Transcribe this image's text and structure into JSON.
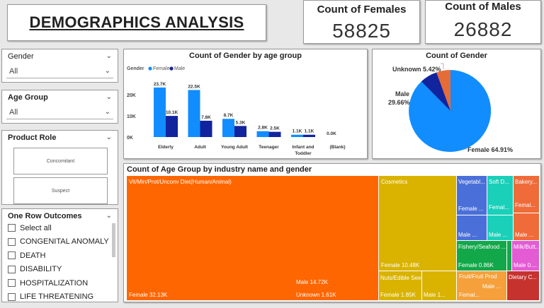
{
  "header": {
    "title": "DEMOGRAPHICS ANALYSIS"
  },
  "kpis": {
    "females": {
      "label": "Count of Females",
      "value": "58825"
    },
    "males": {
      "label": "Count of Males",
      "value": "26882"
    }
  },
  "slicers": {
    "gender": {
      "label": "Gender",
      "value": "All"
    },
    "age_group": {
      "label": "Age Group",
      "value": "All"
    },
    "product_role": {
      "label": "Product Role",
      "options": [
        "Concomitant",
        "Suspect"
      ]
    },
    "outcomes": {
      "label": "One Row Outcomes",
      "items": [
        "Select all",
        "CONGENITAL ANOMALY",
        "DEATH",
        "DISABILITY",
        "HOSPITALIZATION",
        "LIFE THREATENING"
      ]
    }
  },
  "colors": {
    "female": "#118DFF",
    "male": "#12239E",
    "unknown": "#E66C37"
  },
  "age_chart": {
    "title": "Count of Gender by age group",
    "legend_title": "Gender",
    "ytick_labels": [
      "20K",
      "10K",
      "0K"
    ]
  },
  "pie_chart": {
    "title": "Count of Gender",
    "labels": {
      "unknown": "Unknown 5.42%",
      "male_name": "Male",
      "male_pct": "29.66%",
      "female": "Female 64.91%"
    }
  },
  "treemap": {
    "title": "Count of Age Group by industry name and gender",
    "cells": [
      {
        "id": "vit-female",
        "label": "Vit/Min/Prot/Unconv Diet(Human/Animal)",
        "label2": "Female 32.13K",
        "color": "#FE6601"
      },
      {
        "id": "vit-male",
        "label": "Male 14.72K",
        "color": "#FE6601"
      },
      {
        "id": "vit-unknown",
        "label": "Unknown 1.61K",
        "color": "#FE6601"
      },
      {
        "id": "cos-female",
        "label": "Cosmetics",
        "label2": "Female 10.48K",
        "color": "#D9B300"
      },
      {
        "id": "nuts-female",
        "label": "Nuts/Edible Seed",
        "label2": "Female 1.85K",
        "color": "#D9B300"
      },
      {
        "id": "nuts-male",
        "label": "Male 1...",
        "color": "#D9B300"
      },
      {
        "id": "veg-female",
        "label": "Vegetabl...",
        "label2": "Female ...",
        "color": "#4A6FD8"
      },
      {
        "id": "veg-male",
        "label": "Male ...",
        "color": "#4A6FD8"
      },
      {
        "id": "soft-female",
        "label": "Soft D...",
        "label2": "Femal...",
        "color": "#1AD0B9"
      },
      {
        "id": "soft-male",
        "label": "Male ...",
        "color": "#1AD0B9"
      },
      {
        "id": "bak-female",
        "label": "Bakery...",
        "label2": "Femal...",
        "color": "#F06B3A"
      },
      {
        "id": "bak-male",
        "label": "Male ...",
        "color": "#F06B3A"
      },
      {
        "id": "fish",
        "label": "Fishery/Seafood ...",
        "label2": "Female 0.86K",
        "color": "#12A84A"
      },
      {
        "id": "fish-small",
        "label": "",
        "color": "#12A84A"
      },
      {
        "id": "milk",
        "label": "Milk/Butt...",
        "label2": "Male 0....",
        "color": "#E35CD4"
      },
      {
        "id": "fruit",
        "label": "Fruit/Fruit Prod",
        "label2": "Male ...",
        "label3": "Femal...",
        "color": "#F5A03A"
      },
      {
        "id": "dietary",
        "label": "Dietary C...",
        "color": "#C6322E"
      }
    ]
  },
  "chart_data": {
    "type": "bar",
    "title": "Count of Gender by age group",
    "categories": [
      "Elderly",
      "Adult",
      "Young Adult",
      "Teenager",
      "Infant and Toddler",
      "(Blank)"
    ],
    "series": [
      {
        "name": "Female",
        "values": [
          23.7,
          22.5,
          8.7,
          2.8,
          1.1,
          0.0
        ],
        "labels": [
          "23.7K",
          "22.5K",
          "8.7K",
          "2.8K",
          "1.1K",
          "0.0K"
        ]
      },
      {
        "name": "Male",
        "values": [
          10.1,
          7.8,
          5.3,
          2.5,
          1.1,
          0.0
        ],
        "labels": [
          "10.1K",
          "7.8K",
          "5.3K",
          "2.5K",
          "1.1K",
          ""
        ]
      }
    ],
    "ylim": [
      0,
      25
    ],
    "legend": "top-left",
    "grid": false
  }
}
